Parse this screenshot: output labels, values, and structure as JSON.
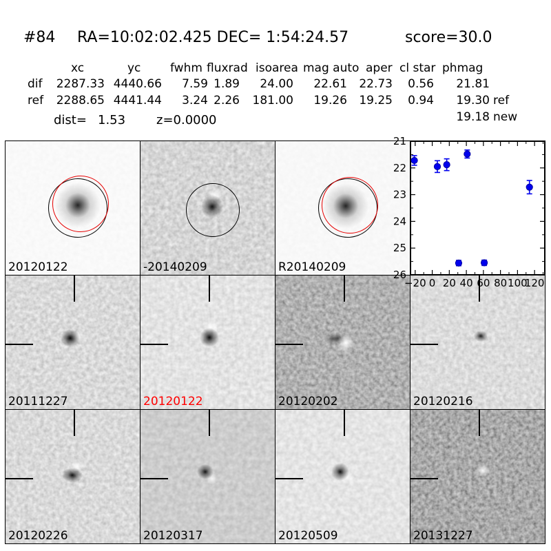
{
  "header": {
    "id": "#84",
    "coords": "RA=10:02:02.425 DEC= 1:54:24.57",
    "score": "score=30.0"
  },
  "table": {
    "columns": [
      "xc",
      "yc",
      "fwhm",
      "fluxrad",
      "isoarea",
      "mag auto",
      "aper",
      "cl star",
      "phmag"
    ],
    "rows": [
      {
        "label": "dif",
        "values": [
          "2287.33",
          "4440.66",
          "7.59",
          "1.89",
          "24.00",
          "22.61",
          "22.73",
          "0.56",
          "21.81"
        ],
        "suffix": ""
      },
      {
        "label": "ref",
        "values": [
          "2288.65",
          "4441.44",
          "3.24",
          "2.26",
          "181.00",
          "19.26",
          "19.25",
          "0.94",
          "19.30"
        ],
        "suffix": "ref"
      }
    ],
    "extra_phmag": {
      "value": "19.18",
      "suffix": "new"
    },
    "dist_label": "dist=",
    "dist_value": "1.53",
    "z_value": "z=0.0000"
  },
  "panels": [
    {
      "label": "20120122",
      "label_color": "#000000"
    },
    {
      "label": "-20140209",
      "label_color": "#000000"
    },
    {
      "label": "R20140209",
      "label_color": "#000000"
    },
    {
      "label": "20111227",
      "label_color": "#000000"
    },
    {
      "label": "20120122",
      "label_color": "#ff0000"
    },
    {
      "label": "20120202",
      "label_color": "#000000"
    },
    {
      "label": "20120216",
      "label_color": "#000000"
    },
    {
      "label": "20120226",
      "label_color": "#000000"
    },
    {
      "label": "20120317",
      "label_color": "#000000"
    },
    {
      "label": "20120509",
      "label_color": "#000000"
    },
    {
      "label": "20131227",
      "label_color": "#000000"
    }
  ],
  "chart_data": {
    "type": "scatter",
    "title": "",
    "xlabel": "",
    "ylabel": "",
    "x_units": "days",
    "y_units": "magnitude",
    "xlim": [
      -25.5,
      132
    ],
    "ylim": [
      21,
      26
    ],
    "y_inverted": true,
    "grid": false,
    "legend": null,
    "xticks": [
      -20,
      0,
      20,
      40,
      60,
      80,
      100,
      120
    ],
    "xtick_labels": [
      "−20",
      "0",
      "20",
      "40",
      "60",
      "80",
      "100",
      "120"
    ],
    "yticks": [
      21,
      22,
      23,
      24,
      25,
      26
    ],
    "ytick_labels": [
      "21",
      "22",
      "23",
      "24",
      "25",
      "26"
    ],
    "marker_color": "#0000ee",
    "points": [
      {
        "x": -21,
        "mag": 21.72,
        "err": 0.18
      },
      {
        "x": 6,
        "mag": 21.95,
        "err": 0.22
      },
      {
        "x": 17,
        "mag": 21.88,
        "err": 0.22
      },
      {
        "x": 41,
        "mag": 21.48,
        "err": 0.15
      },
      {
        "x": 31,
        "mag": 25.56,
        "err": 0.1
      },
      {
        "x": 61,
        "mag": 25.55,
        "err": 0.1
      },
      {
        "x": 114,
        "mag": 22.72,
        "err": 0.25
      }
    ]
  }
}
